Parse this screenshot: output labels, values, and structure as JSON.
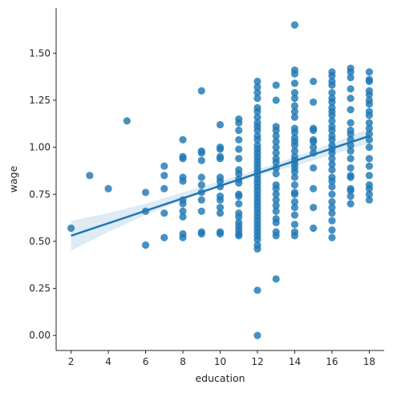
{
  "chart_data": {
    "type": "scatter",
    "title": "",
    "xlabel": "education",
    "ylabel": "wage",
    "xlim": [
      1.2,
      18.8
    ],
    "ylim": [
      -0.08,
      1.74
    ],
    "x_ticks": [
      2,
      4,
      6,
      8,
      10,
      12,
      14,
      16,
      18
    ],
    "y_ticks": [
      0.0,
      0.25,
      0.5,
      0.75,
      1.0,
      1.25,
      1.5
    ],
    "y_tick_labels": [
      "0.00",
      "0.25",
      "0.50",
      "0.75",
      "1.00",
      "1.25",
      "1.50"
    ],
    "grid": false,
    "legend": false,
    "colors": {
      "points": "#1f77b4",
      "regression_line": "#1f77b4",
      "confidence_band": "#1f77b4"
    },
    "points": [
      [
        2,
        0.57
      ],
      [
        3,
        0.85
      ],
      [
        4,
        0.78
      ],
      [
        5,
        1.14
      ],
      [
        6,
        0.76
      ],
      [
        6,
        0.66
      ],
      [
        6,
        0.48
      ],
      [
        7,
        0.9
      ],
      [
        7,
        0.85
      ],
      [
        7,
        0.78
      ],
      [
        7,
        0.65
      ],
      [
        7,
        0.52
      ],
      [
        8,
        1.04
      ],
      [
        8,
        0.95
      ],
      [
        8,
        0.94
      ],
      [
        8,
        0.84
      ],
      [
        8,
        0.82
      ],
      [
        8,
        0.72
      ],
      [
        8,
        0.7
      ],
      [
        8,
        0.66
      ],
      [
        8,
        0.63
      ],
      [
        8,
        0.54
      ],
      [
        8,
        0.52
      ],
      [
        9,
        1.3
      ],
      [
        9,
        0.98
      ],
      [
        9,
        0.97
      ],
      [
        9,
        0.93
      ],
      [
        9,
        0.84
      ],
      [
        9,
        0.8
      ],
      [
        9,
        0.76
      ],
      [
        9,
        0.72
      ],
      [
        9,
        0.66
      ],
      [
        9,
        0.55
      ],
      [
        9,
        0.54
      ],
      [
        10,
        1.12
      ],
      [
        10,
        1.0
      ],
      [
        10,
        0.99
      ],
      [
        10,
        0.95
      ],
      [
        10,
        0.94
      ],
      [
        10,
        0.84
      ],
      [
        10,
        0.82
      ],
      [
        10,
        0.79
      ],
      [
        10,
        0.74
      ],
      [
        10,
        0.72
      ],
      [
        10,
        0.68
      ],
      [
        10,
        0.65
      ],
      [
        10,
        0.55
      ],
      [
        10,
        0.54
      ],
      [
        11,
        1.15
      ],
      [
        11,
        1.13
      ],
      [
        11,
        1.09
      ],
      [
        11,
        1.04
      ],
      [
        11,
        0.99
      ],
      [
        11,
        0.94
      ],
      [
        11,
        0.88
      ],
      [
        11,
        0.86
      ],
      [
        11,
        0.83
      ],
      [
        11,
        0.81
      ],
      [
        11,
        0.75
      ],
      [
        11,
        0.74
      ],
      [
        11,
        0.7
      ],
      [
        11,
        0.65
      ],
      [
        11,
        0.63
      ],
      [
        11,
        0.6
      ],
      [
        11,
        0.58
      ],
      [
        11,
        0.56
      ],
      [
        11,
        0.54
      ],
      [
        11,
        0.53
      ],
      [
        12,
        1.35
      ],
      [
        12,
        1.32
      ],
      [
        12,
        1.29
      ],
      [
        12,
        1.26
      ],
      [
        12,
        1.21
      ],
      [
        12,
        1.19
      ],
      [
        12,
        1.16
      ],
      [
        12,
        1.13
      ],
      [
        12,
        1.11
      ],
      [
        12,
        1.09
      ],
      [
        12,
        1.06
      ],
      [
        12,
        1.04
      ],
      [
        12,
        1.01
      ],
      [
        12,
        0.99
      ],
      [
        12,
        0.97
      ],
      [
        12,
        0.95
      ],
      [
        12,
        0.93
      ],
      [
        12,
        0.91
      ],
      [
        12,
        0.89
      ],
      [
        12,
        0.87
      ],
      [
        12,
        0.85
      ],
      [
        12,
        0.83
      ],
      [
        12,
        0.81
      ],
      [
        12,
        0.79
      ],
      [
        12,
        0.77
      ],
      [
        12,
        0.75
      ],
      [
        12,
        0.73
      ],
      [
        12,
        0.71
      ],
      [
        12,
        0.69
      ],
      [
        12,
        0.67
      ],
      [
        12,
        0.65
      ],
      [
        12,
        0.63
      ],
      [
        12,
        0.61
      ],
      [
        12,
        0.59
      ],
      [
        12,
        0.57
      ],
      [
        12,
        0.55
      ],
      [
        12,
        0.53
      ],
      [
        12,
        0.51
      ],
      [
        12,
        0.48
      ],
      [
        12,
        0.46
      ],
      [
        12,
        0.24
      ],
      [
        12,
        0.0
      ],
      [
        13,
        1.33
      ],
      [
        13,
        1.25
      ],
      [
        13,
        1.11
      ],
      [
        13,
        1.09
      ],
      [
        13,
        1.06
      ],
      [
        13,
        1.03
      ],
      [
        13,
        1.0
      ],
      [
        13,
        0.97
      ],
      [
        13,
        0.94
      ],
      [
        13,
        0.92
      ],
      [
        13,
        0.89
      ],
      [
        13,
        0.86
      ],
      [
        13,
        0.8
      ],
      [
        13,
        0.78
      ],
      [
        13,
        0.75
      ],
      [
        13,
        0.72
      ],
      [
        13,
        0.69
      ],
      [
        13,
        0.66
      ],
      [
        13,
        0.62
      ],
      [
        13,
        0.6
      ],
      [
        13,
        0.55
      ],
      [
        13,
        0.53
      ],
      [
        13,
        0.3
      ],
      [
        14,
        1.65
      ],
      [
        14,
        1.41
      ],
      [
        14,
        1.39
      ],
      [
        14,
        1.34
      ],
      [
        14,
        1.29
      ],
      [
        14,
        1.26
      ],
      [
        14,
        1.22
      ],
      [
        14,
        1.19
      ],
      [
        14,
        1.16
      ],
      [
        14,
        1.1
      ],
      [
        14,
        1.08
      ],
      [
        14,
        1.05
      ],
      [
        14,
        1.03
      ],
      [
        14,
        1.01
      ],
      [
        14,
        0.98
      ],
      [
        14,
        0.95
      ],
      [
        14,
        0.93
      ],
      [
        14,
        0.91
      ],
      [
        14,
        0.89
      ],
      [
        14,
        0.87
      ],
      [
        14,
        0.84
      ],
      [
        14,
        0.8
      ],
      [
        14,
        0.76
      ],
      [
        14,
        0.75
      ],
      [
        14,
        0.71
      ],
      [
        14,
        0.68
      ],
      [
        14,
        0.64
      ],
      [
        14,
        0.59
      ],
      [
        14,
        0.55
      ],
      [
        14,
        0.53
      ],
      [
        15,
        1.35
      ],
      [
        15,
        1.24
      ],
      [
        15,
        1.1
      ],
      [
        15,
        1.09
      ],
      [
        15,
        1.04
      ],
      [
        15,
        1.03
      ],
      [
        15,
        1.0
      ],
      [
        15,
        0.97
      ],
      [
        15,
        0.89
      ],
      [
        15,
        0.78
      ],
      [
        15,
        0.68
      ],
      [
        15,
        0.57
      ],
      [
        16,
        1.4
      ],
      [
        16,
        1.38
      ],
      [
        16,
        1.35
      ],
      [
        16,
        1.33
      ],
      [
        16,
        1.29
      ],
      [
        16,
        1.26
      ],
      [
        16,
        1.24
      ],
      [
        16,
        1.21
      ],
      [
        16,
        1.19
      ],
      [
        16,
        1.17
      ],
      [
        16,
        1.14
      ],
      [
        16,
        1.11
      ],
      [
        16,
        1.09
      ],
      [
        16,
        1.06
      ],
      [
        16,
        1.04
      ],
      [
        16,
        1.01
      ],
      [
        16,
        0.99
      ],
      [
        16,
        0.97
      ],
      [
        16,
        0.94
      ],
      [
        16,
        0.91
      ],
      [
        16,
        0.88
      ],
      [
        16,
        0.84
      ],
      [
        16,
        0.82
      ],
      [
        16,
        0.79
      ],
      [
        16,
        0.75
      ],
      [
        16,
        0.71
      ],
      [
        16,
        0.68
      ],
      [
        16,
        0.65
      ],
      [
        16,
        0.61
      ],
      [
        16,
        0.56
      ],
      [
        16,
        0.52
      ],
      [
        17,
        1.42
      ],
      [
        17,
        1.4
      ],
      [
        17,
        1.37
      ],
      [
        17,
        1.31
      ],
      [
        17,
        1.26
      ],
      [
        17,
        1.2
      ],
      [
        17,
        1.13
      ],
      [
        17,
        1.09
      ],
      [
        17,
        1.07
      ],
      [
        17,
        1.04
      ],
      [
        17,
        1.01
      ],
      [
        17,
        0.98
      ],
      [
        17,
        0.94
      ],
      [
        17,
        0.89
      ],
      [
        17,
        0.85
      ],
      [
        17,
        0.84
      ],
      [
        17,
        0.78
      ],
      [
        17,
        0.77
      ],
      [
        17,
        0.74
      ],
      [
        17,
        0.7
      ],
      [
        18,
        1.4
      ],
      [
        18,
        1.36
      ],
      [
        18,
        1.35
      ],
      [
        18,
        1.3
      ],
      [
        18,
        1.28
      ],
      [
        18,
        1.25
      ],
      [
        18,
        1.23
      ],
      [
        18,
        1.19
      ],
      [
        18,
        1.17
      ],
      [
        18,
        1.13
      ],
      [
        18,
        1.1
      ],
      [
        18,
        1.07
      ],
      [
        18,
        1.04
      ],
      [
        18,
        1.0
      ],
      [
        18,
        0.94
      ],
      [
        18,
        0.9
      ],
      [
        18,
        0.85
      ],
      [
        18,
        0.8
      ],
      [
        18,
        0.78
      ],
      [
        18,
        0.75
      ],
      [
        18,
        0.72
      ]
    ],
    "regression_line": {
      "x": [
        2,
        18
      ],
      "y": [
        0.53,
        1.06
      ]
    },
    "confidence_band": {
      "x": [
        2,
        4,
        6,
        8,
        10,
        12,
        14,
        16,
        18
      ],
      "lower": [
        0.45,
        0.55,
        0.64,
        0.72,
        0.79,
        0.85,
        0.9,
        0.96,
        1.02
      ],
      "upper": [
        0.61,
        0.65,
        0.7,
        0.76,
        0.82,
        0.88,
        0.95,
        1.02,
        1.1
      ]
    }
  }
}
